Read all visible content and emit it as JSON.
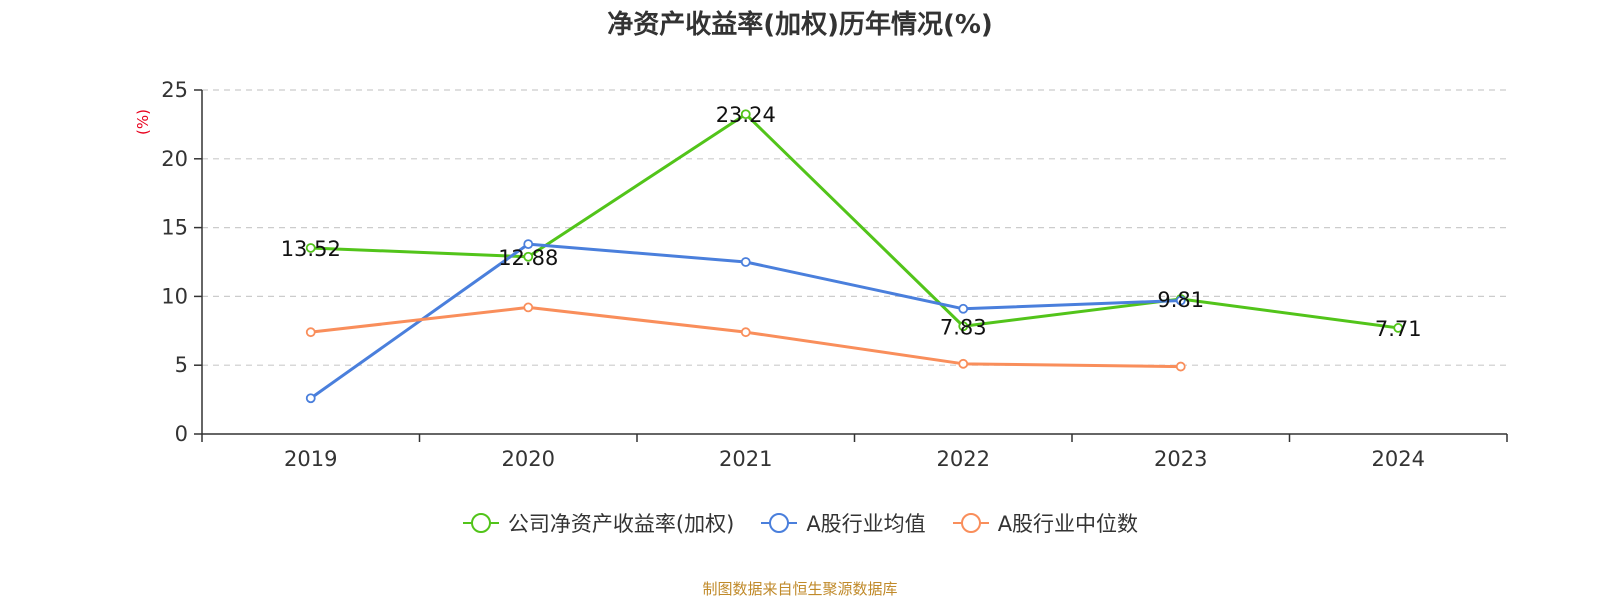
{
  "chart_data": {
    "type": "line",
    "title": "净资产收益率(加权)历年情况(%)",
    "ylabel": "(%)",
    "xlabel": "",
    "categories": [
      "2019",
      "2020",
      "2021",
      "2022",
      "2023",
      "2024"
    ],
    "ylim": [
      0,
      25
    ],
    "yticks": [
      0,
      5,
      10,
      15,
      20,
      25
    ],
    "grid": true,
    "legend_position": "bottom",
    "series": [
      {
        "name": "公司净资产收益率(加权)",
        "color": "#52c41a",
        "values": [
          13.52,
          12.88,
          23.24,
          7.83,
          9.81,
          7.71
        ],
        "labels": [
          "13.52",
          "12.88",
          "23.24",
          "7.83",
          "9.81",
          "7.71"
        ]
      },
      {
        "name": "A股行业均值",
        "color": "#4a7fdc",
        "values": [
          2.6,
          13.8,
          12.5,
          9.1,
          9.7,
          null
        ]
      },
      {
        "name": "A股行业中位数",
        "color": "#f98e5b",
        "values": [
          7.4,
          9.2,
          7.4,
          5.1,
          4.9,
          null
        ]
      }
    ]
  },
  "source_note": "制图数据来自恒生聚源数据库"
}
